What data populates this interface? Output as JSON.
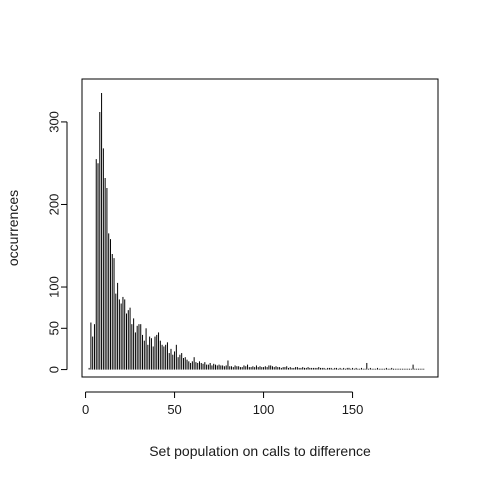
{
  "chart_data": {
    "type": "bar",
    "title": "",
    "xlabel": "Set population on calls to difference",
    "ylabel": "occurrences",
    "xlim": [
      -2,
      198
    ],
    "ylim": [
      -9,
      352
    ],
    "xticks": [
      0,
      50,
      100,
      150
    ],
    "yticks": [
      0,
      50,
      100,
      200,
      300
    ],
    "grid": false,
    "legend": "none",
    "x": [
      2,
      3,
      4,
      5,
      6,
      7,
      8,
      9,
      10,
      11,
      12,
      13,
      14,
      15,
      16,
      17,
      18,
      19,
      20,
      21,
      22,
      23,
      24,
      25,
      26,
      27,
      28,
      29,
      30,
      31,
      32,
      33,
      34,
      35,
      36,
      37,
      38,
      39,
      40,
      41,
      42,
      43,
      44,
      45,
      46,
      47,
      48,
      49,
      50,
      51,
      52,
      53,
      54,
      55,
      56,
      57,
      58,
      59,
      60,
      61,
      62,
      63,
      64,
      65,
      66,
      67,
      68,
      69,
      70,
      71,
      72,
      73,
      74,
      75,
      76,
      77,
      78,
      79,
      80,
      81,
      82,
      83,
      84,
      85,
      86,
      87,
      88,
      89,
      90,
      91,
      92,
      93,
      94,
      95,
      96,
      97,
      98,
      99,
      100,
      101,
      102,
      103,
      104,
      105,
      106,
      107,
      108,
      109,
      110,
      111,
      112,
      113,
      114,
      115,
      116,
      117,
      118,
      119,
      120,
      121,
      122,
      123,
      124,
      125,
      126,
      127,
      128,
      129,
      130,
      131,
      132,
      133,
      134,
      135,
      136,
      137,
      138,
      139,
      140,
      141,
      142,
      143,
      144,
      145,
      146,
      147,
      148,
      149,
      150,
      151,
      152,
      153,
      154,
      155,
      156,
      157,
      158,
      159,
      160,
      161,
      162,
      163,
      164,
      165,
      166,
      167,
      168,
      169,
      170,
      171,
      172,
      173,
      174,
      175,
      176,
      177,
      178,
      179,
      180,
      181,
      182,
      183,
      184,
      185,
      186,
      187,
      188,
      189,
      190
    ],
    "values": [
      2,
      57,
      40,
      55,
      255,
      250,
      312,
      335,
      268,
      232,
      220,
      165,
      158,
      140,
      135,
      92,
      105,
      85,
      80,
      88,
      85,
      68,
      72,
      75,
      55,
      62,
      45,
      53,
      55,
      55,
      42,
      35,
      50,
      30,
      40,
      38,
      28,
      40,
      42,
      45,
      35,
      30,
      28,
      30,
      33,
      20,
      25,
      18,
      22,
      30,
      15,
      18,
      20,
      14,
      15,
      12,
      10,
      8,
      10,
      15,
      9,
      8,
      10,
      8,
      7,
      9,
      6,
      6,
      8,
      5,
      7,
      6,
      5,
      6,
      5,
      5,
      4,
      5,
      11,
      4,
      4,
      3,
      5,
      4,
      4,
      3,
      3,
      5,
      4,
      6,
      3,
      3,
      4,
      3,
      5,
      3,
      4,
      3,
      3,
      4,
      3,
      5,
      5,
      4,
      3,
      4,
      3,
      3,
      2,
      3,
      3,
      4,
      2,
      3,
      2,
      2,
      3,
      3,
      2,
      2,
      3,
      2,
      2,
      3,
      2,
      2,
      2,
      2,
      2,
      3,
      2,
      2,
      2,
      1,
      2,
      2,
      2,
      1,
      2,
      2,
      1,
      2,
      1,
      2,
      1,
      2,
      2,
      1,
      2,
      1,
      2,
      1,
      1,
      2,
      1,
      1,
      8,
      1,
      2,
      1,
      1,
      1,
      2,
      1,
      1,
      1,
      1,
      2,
      1,
      1,
      2,
      1,
      1,
      1,
      1,
      1,
      1,
      1,
      1,
      1,
      1,
      1,
      6,
      1,
      1,
      1,
      1,
      1,
      1
    ]
  }
}
